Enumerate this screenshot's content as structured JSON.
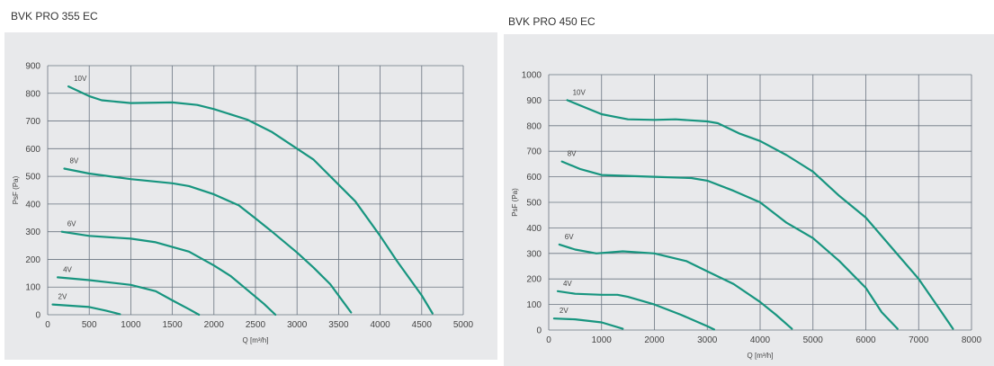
{
  "chart_data": [
    {
      "type": "line",
      "title": "BVK PRO 355 EC",
      "xlabel": "Q [m³/h]",
      "ylabel": "PsF (Pa)",
      "xlim": [
        0,
        5000
      ],
      "ylim": [
        0,
        900
      ],
      "xticks": [
        0,
        500,
        1000,
        1500,
        2000,
        2500,
        3000,
        3500,
        4000,
        4500,
        5000
      ],
      "yticks": [
        0,
        100,
        200,
        300,
        400,
        500,
        600,
        700,
        800,
        900
      ],
      "grid": true,
      "color": "#17957f",
      "series": [
        {
          "name": "10V",
          "points": [
            [
              250,
              825
            ],
            [
              500,
              790
            ],
            [
              650,
              775
            ],
            [
              1000,
              765
            ],
            [
              1500,
              767
            ],
            [
              1800,
              758
            ],
            [
              2000,
              743
            ],
            [
              2400,
              705
            ],
            [
              2700,
              660
            ],
            [
              3000,
              600
            ],
            [
              3200,
              560
            ],
            [
              3500,
              470
            ],
            [
              3700,
              410
            ],
            [
              4000,
              285
            ],
            [
              4200,
              195
            ],
            [
              4500,
              70
            ],
            [
              4630,
              5
            ]
          ]
        },
        {
          "name": "8V",
          "points": [
            [
              200,
              528
            ],
            [
              500,
              510
            ],
            [
              1000,
              490
            ],
            [
              1500,
              475
            ],
            [
              1700,
              465
            ],
            [
              2000,
              435
            ],
            [
              2300,
              395
            ],
            [
              2500,
              348
            ],
            [
              2700,
              300
            ],
            [
              3000,
              225
            ],
            [
              3200,
              170
            ],
            [
              3400,
              110
            ],
            [
              3650,
              8
            ]
          ]
        },
        {
          "name": "6V",
          "points": [
            [
              170,
              300
            ],
            [
              500,
              285
            ],
            [
              1000,
              275
            ],
            [
              1300,
              262
            ],
            [
              1700,
              228
            ],
            [
              2000,
              178
            ],
            [
              2200,
              140
            ],
            [
              2400,
              90
            ],
            [
              2600,
              40
            ],
            [
              2740,
              0
            ]
          ]
        },
        {
          "name": "4V",
          "points": [
            [
              120,
              135
            ],
            [
              500,
              125
            ],
            [
              1000,
              108
            ],
            [
              1300,
              85
            ],
            [
              1500,
              52
            ],
            [
              1700,
              20
            ],
            [
              1820,
              0
            ]
          ]
        },
        {
          "name": "2V",
          "points": [
            [
              60,
              37
            ],
            [
              500,
              28
            ],
            [
              700,
              15
            ],
            [
              870,
              2
            ]
          ]
        }
      ]
    },
    {
      "type": "line",
      "title": "BVK PRO 450 EC",
      "xlabel": "Q [m³/h]",
      "ylabel": "PsF (Pa)",
      "xlim": [
        0,
        8000
      ],
      "ylim": [
        0,
        1000
      ],
      "xticks": [
        0,
        1000,
        2000,
        3000,
        4000,
        5000,
        6000,
        7000,
        8000
      ],
      "yticks": [
        0,
        100,
        200,
        300,
        400,
        500,
        600,
        700,
        800,
        900,
        1000
      ],
      "grid": true,
      "color": "#17957f",
      "series": [
        {
          "name": "10V",
          "points": [
            [
              350,
              900
            ],
            [
              1000,
              845
            ],
            [
              1500,
              825
            ],
            [
              2000,
              823
            ],
            [
              2400,
              825
            ],
            [
              3000,
              817
            ],
            [
              3200,
              810
            ],
            [
              3600,
              770
            ],
            [
              4000,
              740
            ],
            [
              4500,
              685
            ],
            [
              5000,
              620
            ],
            [
              5500,
              525
            ],
            [
              6000,
              440
            ],
            [
              6500,
              320
            ],
            [
              7000,
              200
            ],
            [
              7400,
              80
            ],
            [
              7650,
              5
            ]
          ]
        },
        {
          "name": "8V",
          "points": [
            [
              250,
              660
            ],
            [
              600,
              630
            ],
            [
              1000,
              607
            ],
            [
              2000,
              600
            ],
            [
              2700,
              595
            ],
            [
              3000,
              585
            ],
            [
              3500,
              545
            ],
            [
              4000,
              500
            ],
            [
              4500,
              420
            ],
            [
              5000,
              360
            ],
            [
              5500,
              270
            ],
            [
              6000,
              165
            ],
            [
              6300,
              70
            ],
            [
              6600,
              5
            ]
          ]
        },
        {
          "name": "6V",
          "points": [
            [
              200,
              335
            ],
            [
              500,
              315
            ],
            [
              900,
              300
            ],
            [
              1400,
              308
            ],
            [
              2000,
              300
            ],
            [
              2600,
              270
            ],
            [
              3000,
              230
            ],
            [
              3500,
              180
            ],
            [
              4000,
              110
            ],
            [
              4300,
              60
            ],
            [
              4600,
              5
            ]
          ]
        },
        {
          "name": "4V",
          "points": [
            [
              170,
              152
            ],
            [
              500,
              142
            ],
            [
              1000,
              138
            ],
            [
              1300,
              138
            ],
            [
              1500,
              130
            ],
            [
              2000,
              100
            ],
            [
              2500,
              60
            ],
            [
              3000,
              15
            ],
            [
              3130,
              2
            ]
          ]
        },
        {
          "name": "2V",
          "points": [
            [
              100,
              45
            ],
            [
              500,
              42
            ],
            [
              1000,
              30
            ],
            [
              1400,
              5
            ]
          ]
        }
      ]
    }
  ]
}
